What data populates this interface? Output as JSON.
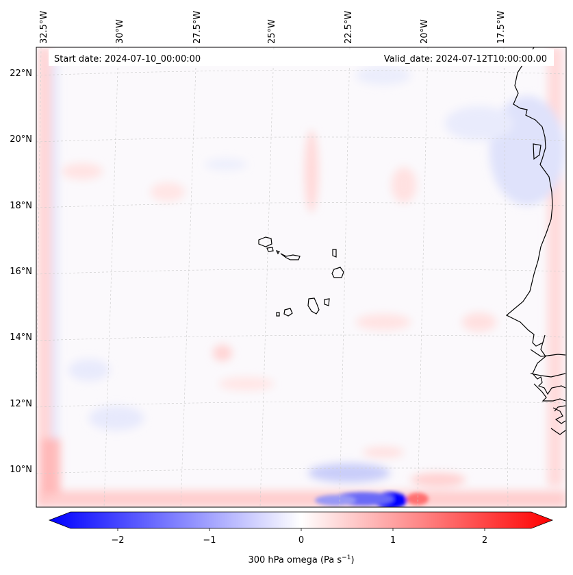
{
  "header": {
    "start_date": "Start date: 2024-07-10_00:00:00",
    "valid_date": "Valid_date: 2024-07-12T10:00:00.00"
  },
  "map": {
    "projection": "lambert-conformal",
    "region": "Cape Verde / Senegal coast",
    "lon_labels": [
      "32.5°W",
      "30°W",
      "27.5°W",
      "25°W",
      "22.5°W",
      "20°W",
      "17.5°W"
    ],
    "lat_labels": [
      "22°N",
      "20°N",
      "18°N",
      "16°N",
      "14°N",
      "12°N",
      "10°N"
    ],
    "gridlines": true,
    "field": "300 hPa vertical velocity (omega)"
  },
  "colorbar": {
    "label": "300 hPa omega (Pa s",
    "label_exponent": "−1",
    "label_close": ")",
    "ticks": [
      "−2",
      "−1",
      "0",
      "1",
      "2"
    ],
    "range": [
      -2.75,
      2.75
    ],
    "extend": "both",
    "colormap": [
      "#0000ff",
      "#ffffff",
      "#ff0000"
    ]
  }
}
